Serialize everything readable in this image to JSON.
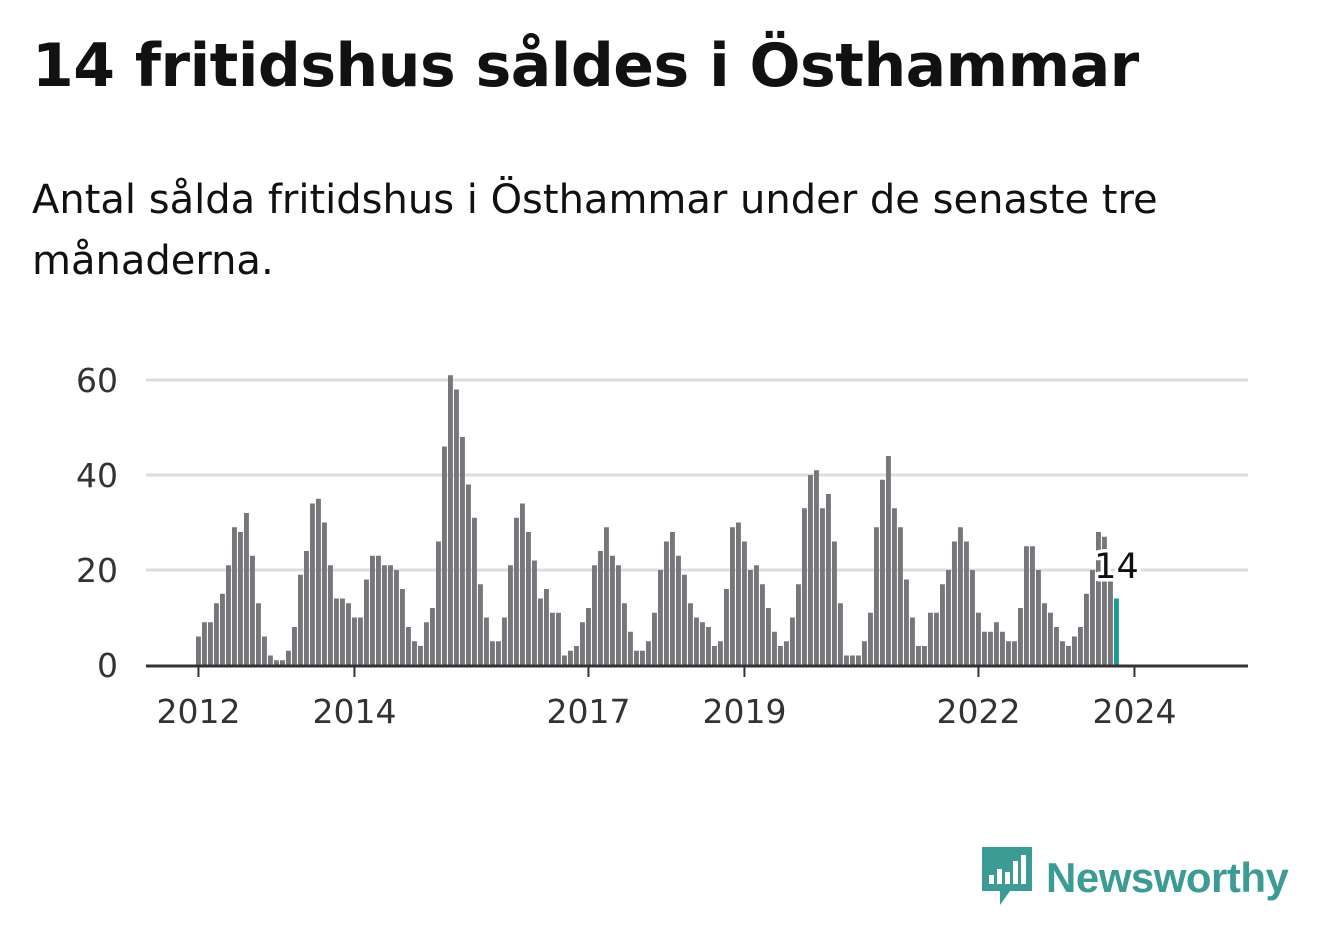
{
  "title": "14 fritidshus såldes i Östhammar",
  "subtitle": "Antal sålda fritidshus i Östhammar under de senaste tre månaderna.",
  "brand": {
    "name": "Newsworthy",
    "icon": "bar-chart-speech-bubble-icon",
    "color": "#3d9b95"
  },
  "colors": {
    "bar": "#77767a",
    "highlight": "#1a9b96",
    "grid": "#dddddd",
    "axis": "#333333"
  },
  "chart_data": {
    "type": "bar",
    "ylim": [
      0,
      60
    ],
    "yticks": [
      0,
      20,
      40,
      60
    ],
    "xtick_labels": [
      {
        "label": "2012",
        "index": 0
      },
      {
        "label": "2014",
        "index": 26
      },
      {
        "label": "2017",
        "index": 65
      },
      {
        "label": "2019",
        "index": 91
      },
      {
        "label": "2022",
        "index": 130
      },
      {
        "label": "2024",
        "index": 156
      }
    ],
    "highlight_label": "14",
    "values": [
      6,
      9,
      9,
      13,
      15,
      21,
      29,
      28,
      32,
      23,
      13,
      6,
      2,
      1,
      1,
      3,
      8,
      19,
      24,
      34,
      35,
      30,
      21,
      14,
      14,
      13,
      10,
      10,
      18,
      23,
      23,
      21,
      21,
      20,
      16,
      8,
      5,
      4,
      9,
      12,
      26,
      46,
      61,
      58,
      48,
      38,
      31,
      17,
      10,
      5,
      5,
      10,
      21,
      31,
      34,
      28,
      22,
      14,
      16,
      11,
      11,
      2,
      3,
      4,
      9,
      12,
      21,
      24,
      29,
      23,
      21,
      13,
      7,
      3,
      3,
      5,
      11,
      20,
      26,
      28,
      23,
      19,
      13,
      10,
      9,
      8,
      4,
      5,
      16,
      29,
      30,
      26,
      20,
      21,
      17,
      12,
      7,
      4,
      5,
      10,
      17,
      33,
      40,
      41,
      33,
      36,
      26,
      13,
      2,
      2,
      2,
      5,
      11,
      29,
      39,
      44,
      33,
      29,
      18,
      10,
      4,
      4,
      11,
      11,
      17,
      20,
      26,
      29,
      26,
      20,
      11,
      7,
      7,
      9,
      7,
      5,
      5,
      12,
      25,
      25,
      20,
      13,
      11,
      8,
      5,
      4,
      6,
      8,
      15,
      20,
      28,
      27,
      19,
      14
    ]
  }
}
